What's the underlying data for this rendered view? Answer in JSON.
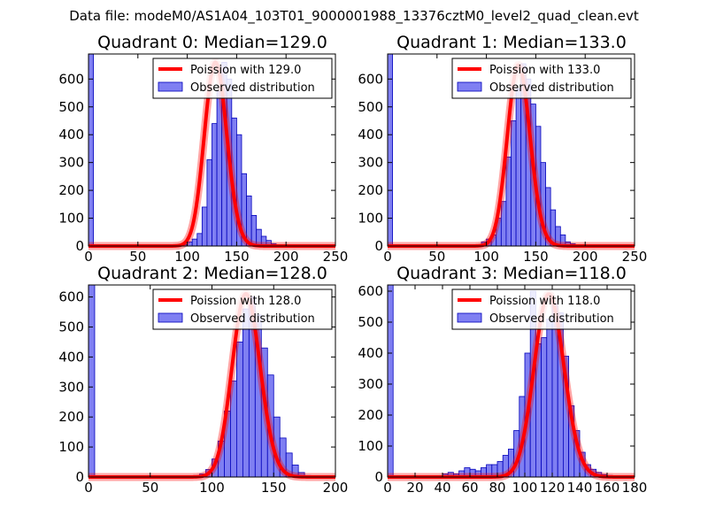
{
  "figure": {
    "suptitle": "Data file: modeM0/AS1A04_103T01_9000001988_13376cztM0_level2_quad_clean.evt"
  },
  "colors": {
    "bar_fill": "#7f7ff2",
    "bar_edge": "#0000bb",
    "fit_line": "#ff0000",
    "background": "#ffffff"
  },
  "chart_data": [
    {
      "type": "bar",
      "title": "Quadrant 0: Median=129.0",
      "xlim": [
        0,
        250
      ],
      "ylim": [
        0,
        690
      ],
      "xticks": [
        0,
        50,
        100,
        150,
        200,
        250
      ],
      "yticks": [
        0,
        100,
        200,
        300,
        400,
        500,
        600
      ],
      "legend": {
        "position": "top-right",
        "line_label": "Poission with 129.0",
        "bar_label": "Observed distribution"
      },
      "bins": {
        "start": 0,
        "width": 5
      },
      "observed": [
        690,
        0,
        0,
        0,
        0,
        0,
        0,
        0,
        0,
        0,
        0,
        0,
        0,
        0,
        0,
        0,
        0,
        0,
        2,
        5,
        15,
        25,
        45,
        140,
        310,
        440,
        555,
        660,
        600,
        460,
        400,
        260,
        180,
        110,
        60,
        35,
        20,
        8,
        4,
        2,
        1,
        0,
        0,
        0,
        0,
        0,
        0,
        0,
        0,
        0
      ],
      "poisson": {
        "mean": 129.0,
        "x_range": [
          0,
          250
        ],
        "y_max": 660
      }
    },
    {
      "type": "bar",
      "title": "Quadrant 1: Median=133.0",
      "xlim": [
        0,
        250
      ],
      "ylim": [
        0,
        690
      ],
      "xticks": [
        0,
        50,
        100,
        150,
        200,
        250
      ],
      "yticks": [
        0,
        100,
        200,
        300,
        400,
        500,
        600
      ],
      "legend": {
        "position": "top-right",
        "line_label": "Poission with 133.0",
        "bar_label": "Observed distribution"
      },
      "bins": {
        "start": 0,
        "width": 5
      },
      "observed": [
        690,
        0,
        0,
        0,
        0,
        0,
        0,
        0,
        0,
        0,
        0,
        0,
        0,
        0,
        0,
        0,
        0,
        0,
        0,
        15,
        25,
        40,
        100,
        160,
        320,
        450,
        565,
        655,
        600,
        510,
        430,
        300,
        210,
        130,
        70,
        40,
        15,
        8,
        3,
        1,
        0,
        0,
        0,
        0,
        0,
        0,
        0,
        0,
        0,
        0
      ],
      "poisson": {
        "mean": 133.0,
        "x_range": [
          0,
          250
        ],
        "y_max": 650
      }
    },
    {
      "type": "bar",
      "title": "Quadrant 2: Median=128.0",
      "xlim": [
        0,
        200
      ],
      "ylim": [
        0,
        640
      ],
      "xticks": [
        0,
        50,
        100,
        150,
        200
      ],
      "yticks": [
        0,
        100,
        200,
        300,
        400,
        500,
        600
      ],
      "legend": {
        "position": "top-right",
        "line_label": "Poission with 128.0",
        "bar_label": "Observed distribution"
      },
      "bins": {
        "start": 0,
        "width": 5
      },
      "observed": [
        640,
        0,
        0,
        0,
        0,
        0,
        0,
        0,
        0,
        0,
        0,
        0,
        0,
        0,
        0,
        0,
        3,
        5,
        10,
        25,
        60,
        120,
        220,
        320,
        450,
        560,
        600,
        540,
        430,
        340,
        200,
        130,
        80,
        40,
        15,
        5,
        2,
        0,
        0,
        0
      ],
      "poisson": {
        "mean": 128.0,
        "x_range": [
          0,
          200
        ],
        "y_max": 610
      }
    },
    {
      "type": "bar",
      "title": "Quadrant 3: Median=118.0",
      "xlim": [
        0,
        180
      ],
      "ylim": [
        0,
        620
      ],
      "xticks": [
        0,
        20,
        40,
        60,
        80,
        100,
        120,
        140,
        160,
        180
      ],
      "yticks": [
        0,
        100,
        200,
        300,
        400,
        500,
        600
      ],
      "legend": {
        "position": "top-right",
        "line_label": "Poission with 118.0",
        "bar_label": "Observed distribution"
      },
      "bins": {
        "start": 0,
        "width": 4
      },
      "observed": [
        620,
        0,
        0,
        0,
        0,
        0,
        0,
        0,
        0,
        0,
        10,
        15,
        10,
        20,
        30,
        25,
        20,
        30,
        40,
        40,
        50,
        70,
        90,
        150,
        260,
        400,
        600,
        430,
        450,
        510,
        560,
        530,
        390,
        230,
        150,
        80,
        40,
        25,
        15,
        8,
        5,
        2,
        0,
        0,
        0
      ],
      "poisson": {
        "mean": 118.0,
        "x_range": [
          0,
          180
        ],
        "y_max": 590
      }
    }
  ]
}
